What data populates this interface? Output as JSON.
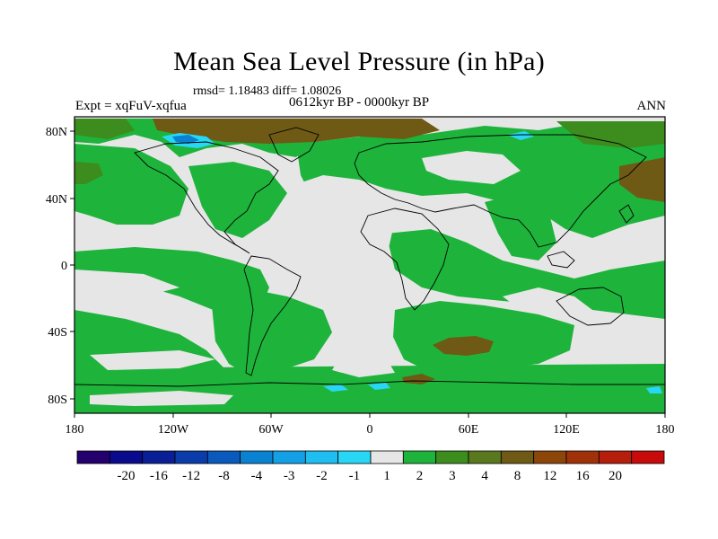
{
  "title": "Mean Sea Level Pressure (in hPa)",
  "stats": "rmsd= 1.18483  diff= 1.08026",
  "experiment": "Expt = xqFuV-xqfua",
  "period": "0612kyr BP - 0000kyr BP",
  "season": "ANN",
  "lat_labels": [
    "80N",
    "40N",
    "0",
    "40S",
    "80S"
  ],
  "lon_labels": [
    "180",
    "120W",
    "60W",
    "0",
    "60E",
    "120E",
    "180"
  ],
  "colorbar": {
    "labels": [
      "-20",
      "-16",
      "-12",
      "-8",
      "-4",
      "-3",
      "-2",
      "-1",
      "1",
      "2",
      "3",
      "4",
      "8",
      "12",
      "16",
      "20"
    ],
    "colors": [
      "#24006e",
      "#0a0a8c",
      "#0a1e96",
      "#0a3caa",
      "#0a5abe",
      "#0a82d2",
      "#14a0e6",
      "#1ebef0",
      "#28d7f5",
      "#e6e6e6",
      "#1eb43c",
      "#3c8c1e",
      "#5a781e",
      "#6e5a14",
      "#8c460a",
      "#a0320a",
      "#b41e0a",
      "#c80a0a"
    ]
  },
  "legend_colors": {
    "neutral": "#e6e6e6",
    "positive_small": "#1eb43c",
    "positive_mid": "#3c8c1e",
    "positive_high": "#6e5a14",
    "negative_small": "#28d7f5",
    "negative_mid": "#0a82d2",
    "coastline": "#000000"
  }
}
